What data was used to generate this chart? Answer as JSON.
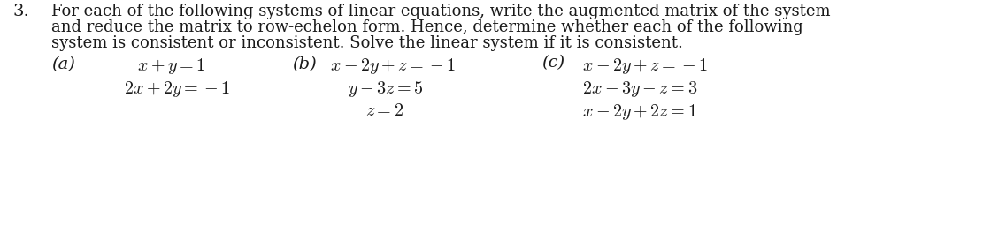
{
  "background_color": "#ffffff",
  "number": "3.",
  "para_line1": "For each of the following systems of linear equations, write the augmented matrix of the system",
  "para_line2": "and reduce the matrix to row-echelon form. Hence, determine whether each of the following",
  "para_line3": "system is consistent or inconsistent. Solve the linear system if it is consistent.",
  "label_a": "(a)",
  "label_b": "(b)",
  "label_c": "(c)",
  "eq_a1": "$x+y=1$",
  "eq_a2": "$2x+2y=-1$",
  "eq_b1": "$x-2y+z=-1$",
  "eq_b2": "$y-3z=5$",
  "eq_b3": "$z=2$",
  "eq_c1": "$x-2y+z=-1$",
  "eq_c2": "$2x-3y-z=3$",
  "eq_c3": "$x-2y+2z=1$",
  "font_size_para": 13.0,
  "font_size_eq": 14.5,
  "font_size_label": 14.0,
  "font_size_number": 14.0,
  "text_color": "#1a1a1a",
  "figw": 11.37,
  "figh": 2.72,
  "dpi": 100
}
